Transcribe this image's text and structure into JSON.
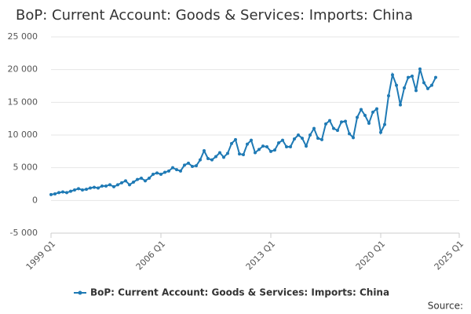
{
  "chart_data": {
    "type": "line",
    "title": "BoP: Current Account: Goods & Services: Imports: China",
    "source": "Source:",
    "xlim": [
      0,
      104
    ],
    "xticks": [
      {
        "value": 0,
        "label": "1999 Q1"
      },
      {
        "value": 28,
        "label": "2006 Q1"
      },
      {
        "value": 56,
        "label": "2013 Q1"
      },
      {
        "value": 84,
        "label": "2020 Q1"
      },
      {
        "value": 104,
        "label": "2025 Q1"
      }
    ],
    "ylim": [
      -5000,
      25000
    ],
    "yticks": [
      {
        "value": -5000,
        "label": "-5 000"
      },
      0,
      {
        "value": 5000,
        "label": "5 000"
      },
      {
        "value": 10000,
        "label": "10 000"
      },
      {
        "value": 15000,
        "label": "15 000"
      },
      {
        "value": 20000,
        "label": "20 000"
      },
      {
        "value": 25000,
        "label": "25 000"
      }
    ],
    "grid": true,
    "legend": "bottom",
    "series": [
      {
        "name": "BoP: Current Account: Goods & Services: Imports: China",
        "color": "#1f7ab5",
        "values": [
          900,
          1000,
          1200,
          1300,
          1200,
          1400,
          1600,
          1800,
          1600,
          1700,
          1900,
          2000,
          1900,
          2200,
          2200,
          2400,
          2100,
          2400,
          2700,
          3000,
          2400,
          2800,
          3200,
          3400,
          3000,
          3400,
          4000,
          4200,
          4000,
          4300,
          4500,
          5000,
          4700,
          4500,
          5400,
          5700,
          5200,
          5300,
          6200,
          7600,
          6400,
          6200,
          6700,
          7300,
          6600,
          7200,
          8700,
          9300,
          7100,
          7000,
          8600,
          9200,
          7300,
          7800,
          8300,
          8200,
          7500,
          7700,
          8800,
          9200,
          8200,
          8200,
          9400,
          10000,
          9500,
          8300,
          10000,
          11000,
          9500,
          9300,
          11700,
          12200,
          11000,
          10700,
          12000,
          12100,
          10200,
          9600,
          12700,
          13900,
          13000,
          11800,
          13500,
          14000,
          10400,
          11600,
          16000,
          19200,
          17600,
          14600,
          17200,
          18800,
          19000,
          16800,
          20100,
          18000,
          17100,
          17600,
          18800
        ]
      }
    ]
  }
}
